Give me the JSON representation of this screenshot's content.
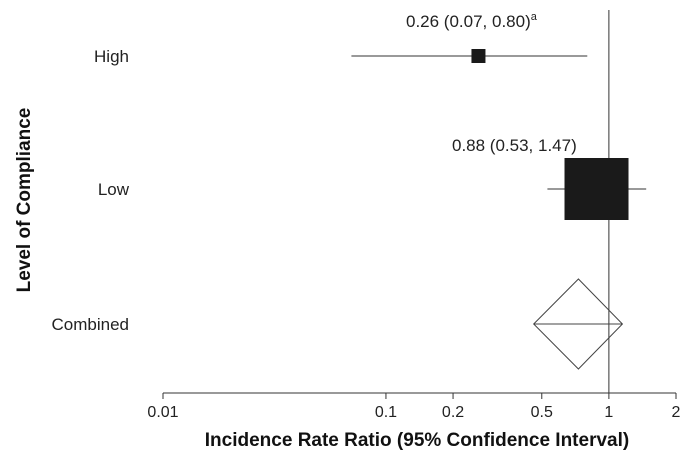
{
  "chart_data": {
    "type": "forest",
    "xlabel": "Incidence Rate Ratio (95% Confidence Interval)",
    "ylabel": "Level of Compliance",
    "xscale": "log",
    "xlim": [
      0.01,
      2
    ],
    "xticks": [
      {
        "value": 0.01,
        "label": "0.01"
      },
      {
        "value": 0.1,
        "label": "0.1"
      },
      {
        "value": 0.2,
        "label": "0.2"
      },
      {
        "value": 0.5,
        "label": "0.5"
      },
      {
        "value": 1,
        "label": "1"
      },
      {
        "value": 2,
        "label": "2"
      }
    ],
    "reference_line": 1,
    "rows": [
      {
        "category": "High",
        "estimate": 0.26,
        "lower": 0.07,
        "upper": 0.8,
        "marker": "square",
        "weight": 0.2,
        "annotation": "0.26 (0.07, 0.80)",
        "annotation_sup": "a"
      },
      {
        "category": "Low",
        "estimate": 0.88,
        "lower": 0.53,
        "upper": 1.47,
        "marker": "square",
        "weight": 1.0,
        "annotation": "0.88 (0.53, 1.47)",
        "annotation_sup": ""
      },
      {
        "category": "Combined",
        "estimate": 0.73,
        "lower": 0.46,
        "upper": 1.15,
        "marker": "diamond",
        "weight": 1.0,
        "annotation": "",
        "annotation_sup": ""
      }
    ],
    "colors": {
      "marker": "#1a1a1a",
      "line": "#333333",
      "diamond": "#444444"
    }
  }
}
